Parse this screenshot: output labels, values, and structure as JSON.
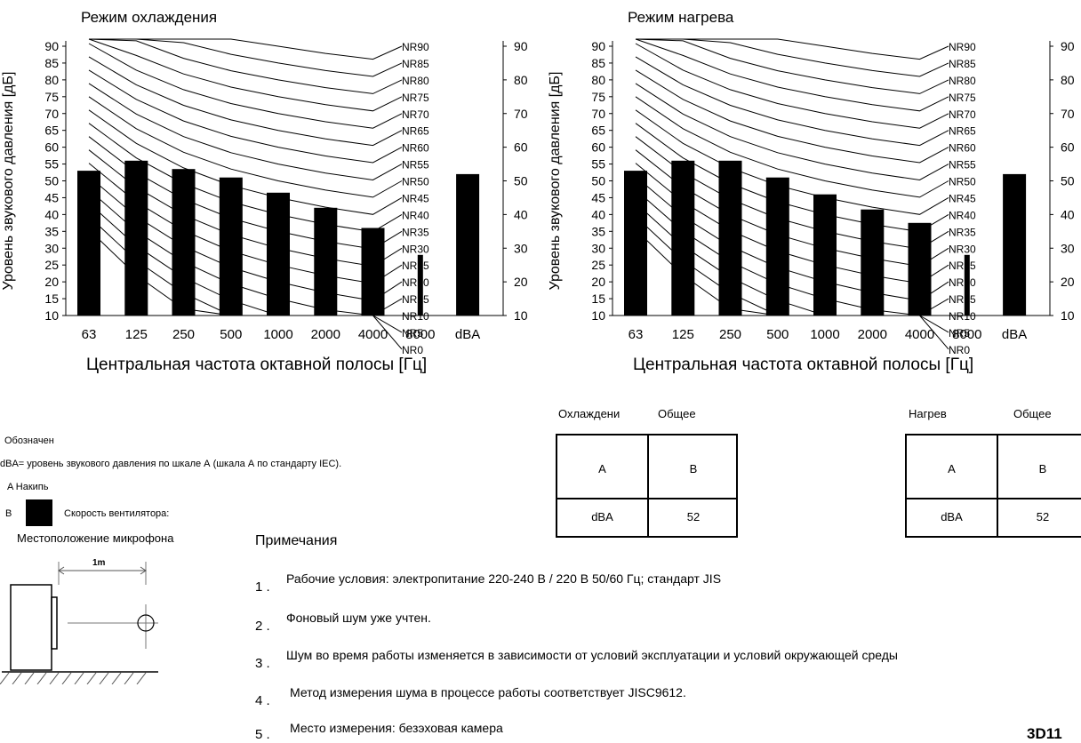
{
  "chart_data": [
    {
      "type": "bar",
      "title": "Режим охлаждения",
      "xlabel": "Центральная частота октавной полосы [Гц]",
      "ylabel": "Уровень звукового давления [дБ]",
      "ylim": [
        10,
        90
      ],
      "yticks": [
        "10",
        "15",
        "20",
        "25",
        "30",
        "35",
        "40",
        "45",
        "50",
        "55",
        "60",
        "65",
        "70",
        "75",
        "80",
        "85",
        "90"
      ],
      "yticks_right": [
        "10",
        "20",
        "30",
        "40",
        "50",
        "60",
        "70",
        "80",
        "90"
      ],
      "categories": [
        "63",
        "125",
        "250",
        "500",
        "1000",
        "2000",
        "4000",
        "8000",
        "dBA"
      ],
      "values": [
        53,
        56,
        53.5,
        51,
        46.5,
        42,
        36,
        28,
        52
      ],
      "nr_curves": [
        "NR90",
        "NR85",
        "NR80",
        "NR75",
        "NR70",
        "NR65",
        "NR60",
        "NR55",
        "NR50",
        "NR45",
        "NR40",
        "NR35",
        "NR30",
        "NR25",
        "NR20",
        "NR15",
        "NR10",
        "NR5",
        "NR0"
      ],
      "grid": false
    },
    {
      "type": "bar",
      "title": "Режим нагрева",
      "xlabel": "Центральная частота октавной полосы [Гц]",
      "ylabel": "Уровень звукового давления [дБ]",
      "ylim": [
        10,
        90
      ],
      "yticks": [
        "10",
        "15",
        "20",
        "25",
        "30",
        "35",
        "40",
        "45",
        "50",
        "55",
        "60",
        "65",
        "70",
        "75",
        "80",
        "85",
        "90"
      ],
      "yticks_right": [
        "10",
        "20",
        "30",
        "40",
        "50",
        "60",
        "70",
        "80",
        "90"
      ],
      "categories": [
        "63",
        "125",
        "250",
        "500",
        "1000",
        "2000",
        "4000",
        "8000",
        "dBA"
      ],
      "values": [
        53,
        56,
        56,
        51,
        46,
        41.5,
        37.5,
        28,
        52
      ],
      "nr_curves": [
        "NR90",
        "NR85",
        "NR80",
        "NR75",
        "NR70",
        "NR65",
        "NR60",
        "NR55",
        "NR50",
        "NR45",
        "NR40",
        "NR35",
        "NR30",
        "NR25",
        "NR20",
        "NR15",
        "NR10",
        "NR5",
        "NR0"
      ],
      "grid": false
    }
  ],
  "tables": [
    {
      "header_left": "Охлаждени",
      "header_right": "Общее",
      "row1_left": "A",
      "row1_right": "B",
      "row2_left": "dBA",
      "row2_right": "52"
    },
    {
      "header_left": "Нагрев",
      "header_right": "Общее",
      "row1_left": "A",
      "row1_right": "B",
      "row2_left": "dBA",
      "row2_right": "52"
    }
  ],
  "legend": {
    "heading": "Обозначен",
    "dba_def": "dBA= уровень звукового давления по шкале А (шкала А по стандарту IEC).",
    "a_label": "A Накипь",
    "b_prefix": "B",
    "b_label": "Скорость вентилятора:",
    "mic_label": "Местоположение микрофона",
    "mic_distance": "1m"
  },
  "notes": {
    "title": "Примечания",
    "items": [
      {
        "num": "1 .",
        "text": "Рабочие условия: электропитание 220-240 В / 220 В 50/60 Гц; стандарт JIS"
      },
      {
        "num": "2 .",
        "text": "Фоновый шум уже учтен."
      },
      {
        "num": "3 .",
        "text": "Шум во время работы изменяется в зависимости от условий эксплуатации и условий окружающей среды"
      },
      {
        "num": "4 .",
        "text": "Метод измерения шума в процессе работы соответствует JISC9612."
      },
      {
        "num": "5 .",
        "text": "Место измерения: безэховая камера"
      }
    ]
  },
  "doc_code": "3D11",
  "colors": {
    "bar": "#000000",
    "curve": "#000000",
    "background": "#ffffff"
  }
}
